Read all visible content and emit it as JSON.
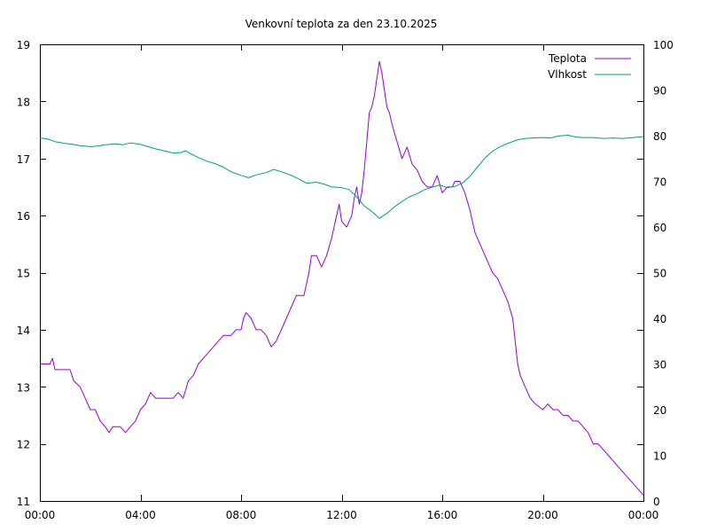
{
  "chart_data": {
    "type": "line",
    "title": "Venkovní teplota za den 23.10.2025",
    "xlabel": "",
    "ylabel": "",
    "y2label": "",
    "x_ticks": [
      "00:00",
      "04:00",
      "08:00",
      "12:00",
      "16:00",
      "20:00",
      "00:00"
    ],
    "x_range_hours": [
      0,
      24
    ],
    "ylim": [
      11,
      19
    ],
    "y_ticks": [
      11,
      12,
      13,
      14,
      15,
      16,
      17,
      18,
      19
    ],
    "y2lim": [
      0,
      100
    ],
    "y2_ticks": [
      0,
      10,
      20,
      30,
      40,
      50,
      60,
      70,
      80,
      90,
      100
    ],
    "grid": false,
    "legend_position": "top-right",
    "series": [
      {
        "name": "Teplota",
        "axis": "left",
        "color": "#9400d3",
        "points": [
          [
            0.0,
            13.4
          ],
          [
            0.4,
            13.4
          ],
          [
            0.5,
            13.5
          ],
          [
            0.6,
            13.3
          ],
          [
            1.0,
            13.3
          ],
          [
            1.2,
            13.3
          ],
          [
            1.35,
            13.1
          ],
          [
            1.6,
            13.0
          ],
          [
            1.8,
            12.8
          ],
          [
            2.0,
            12.6
          ],
          [
            2.2,
            12.6
          ],
          [
            2.4,
            12.4
          ],
          [
            2.6,
            12.3
          ],
          [
            2.75,
            12.2
          ],
          [
            2.9,
            12.3
          ],
          [
            3.2,
            12.3
          ],
          [
            3.4,
            12.2
          ],
          [
            3.6,
            12.3
          ],
          [
            3.8,
            12.4
          ],
          [
            4.0,
            12.6
          ],
          [
            4.2,
            12.7
          ],
          [
            4.4,
            12.9
          ],
          [
            4.6,
            12.8
          ],
          [
            5.0,
            12.8
          ],
          [
            5.3,
            12.8
          ],
          [
            5.5,
            12.9
          ],
          [
            5.7,
            12.8
          ],
          [
            5.9,
            13.1
          ],
          [
            6.1,
            13.2
          ],
          [
            6.3,
            13.4
          ],
          [
            6.5,
            13.5
          ],
          [
            6.7,
            13.6
          ],
          [
            6.9,
            13.7
          ],
          [
            7.1,
            13.8
          ],
          [
            7.3,
            13.9
          ],
          [
            7.6,
            13.9
          ],
          [
            7.8,
            14.0
          ],
          [
            8.0,
            14.0
          ],
          [
            8.1,
            14.2
          ],
          [
            8.2,
            14.3
          ],
          [
            8.4,
            14.2
          ],
          [
            8.6,
            14.0
          ],
          [
            8.8,
            14.0
          ],
          [
            9.0,
            13.9
          ],
          [
            9.2,
            13.7
          ],
          [
            9.4,
            13.8
          ],
          [
            9.6,
            14.0
          ],
          [
            9.8,
            14.2
          ],
          [
            10.0,
            14.4
          ],
          [
            10.2,
            14.6
          ],
          [
            10.5,
            14.6
          ],
          [
            10.7,
            15.0
          ],
          [
            10.8,
            15.3
          ],
          [
            11.0,
            15.3
          ],
          [
            11.2,
            15.1
          ],
          [
            11.4,
            15.3
          ],
          [
            11.6,
            15.6
          ],
          [
            11.8,
            16.0
          ],
          [
            11.9,
            16.2
          ],
          [
            12.0,
            15.9
          ],
          [
            12.2,
            15.8
          ],
          [
            12.4,
            16.0
          ],
          [
            12.5,
            16.3
          ],
          [
            12.6,
            16.5
          ],
          [
            12.7,
            16.2
          ],
          [
            12.8,
            16.4
          ],
          [
            12.9,
            16.8
          ],
          [
            13.0,
            17.3
          ],
          [
            13.1,
            17.8
          ],
          [
            13.2,
            17.9
          ],
          [
            13.3,
            18.1
          ],
          [
            13.4,
            18.4
          ],
          [
            13.5,
            18.7
          ],
          [
            13.6,
            18.5
          ],
          [
            13.7,
            18.2
          ],
          [
            13.8,
            17.9
          ],
          [
            13.9,
            17.8
          ],
          [
            14.0,
            17.6
          ],
          [
            14.2,
            17.3
          ],
          [
            14.4,
            17.0
          ],
          [
            14.6,
            17.2
          ],
          [
            14.8,
            16.9
          ],
          [
            15.0,
            16.8
          ],
          [
            15.2,
            16.6
          ],
          [
            15.4,
            16.5
          ],
          [
            15.6,
            16.5
          ],
          [
            15.8,
            16.7
          ],
          [
            16.0,
            16.4
          ],
          [
            16.2,
            16.5
          ],
          [
            16.4,
            16.5
          ],
          [
            16.5,
            16.6
          ],
          [
            16.7,
            16.6
          ],
          [
            16.9,
            16.4
          ],
          [
            17.1,
            16.1
          ],
          [
            17.3,
            15.7
          ],
          [
            17.5,
            15.5
          ],
          [
            17.7,
            15.3
          ],
          [
            17.9,
            15.1
          ],
          [
            18.0,
            15.0
          ],
          [
            18.2,
            14.9
          ],
          [
            18.4,
            14.7
          ],
          [
            18.6,
            14.5
          ],
          [
            18.8,
            14.2
          ],
          [
            18.9,
            13.8
          ],
          [
            19.0,
            13.4
          ],
          [
            19.1,
            13.2
          ],
          [
            19.3,
            13.0
          ],
          [
            19.5,
            12.8
          ],
          [
            19.7,
            12.7
          ],
          [
            20.0,
            12.6
          ],
          [
            20.2,
            12.7
          ],
          [
            20.4,
            12.6
          ],
          [
            20.6,
            12.6
          ],
          [
            20.8,
            12.5
          ],
          [
            21.0,
            12.5
          ],
          [
            21.2,
            12.4
          ],
          [
            21.4,
            12.4
          ],
          [
            21.6,
            12.3
          ],
          [
            21.8,
            12.2
          ],
          [
            22.0,
            12.0
          ],
          [
            22.2,
            12.0
          ],
          [
            22.4,
            11.9
          ],
          [
            22.6,
            11.8
          ],
          [
            22.8,
            11.7
          ],
          [
            23.0,
            11.6
          ],
          [
            23.2,
            11.5
          ],
          [
            23.4,
            11.4
          ],
          [
            23.6,
            11.3
          ],
          [
            23.8,
            11.2
          ],
          [
            24.0,
            11.1
          ]
        ]
      },
      {
        "name": "Vlhkost",
        "axis": "right",
        "color": "#009e73",
        "points": [
          [
            0.0,
            79.5
          ],
          [
            0.3,
            79.3
          ],
          [
            0.6,
            78.7
          ],
          [
            1.0,
            78.3
          ],
          [
            1.3,
            78.1
          ],
          [
            1.6,
            77.8
          ],
          [
            2.0,
            77.6
          ],
          [
            2.3,
            77.7
          ],
          [
            2.6,
            78.0
          ],
          [
            3.0,
            78.2
          ],
          [
            3.3,
            78.0
          ],
          [
            3.6,
            78.4
          ],
          [
            4.0,
            78.1
          ],
          [
            4.3,
            77.6
          ],
          [
            4.6,
            77.1
          ],
          [
            5.0,
            76.6
          ],
          [
            5.3,
            76.2
          ],
          [
            5.6,
            76.3
          ],
          [
            5.8,
            76.7
          ],
          [
            6.0,
            76.0
          ],
          [
            6.3,
            75.2
          ],
          [
            6.6,
            74.5
          ],
          [
            7.0,
            73.8
          ],
          [
            7.3,
            73.1
          ],
          [
            7.6,
            72.1
          ],
          [
            8.0,
            71.3
          ],
          [
            8.3,
            70.8
          ],
          [
            8.6,
            71.4
          ],
          [
            9.0,
            71.9
          ],
          [
            9.3,
            72.6
          ],
          [
            9.6,
            72.1
          ],
          [
            10.0,
            71.3
          ],
          [
            10.3,
            70.5
          ],
          [
            10.6,
            69.6
          ],
          [
            11.0,
            69.8
          ],
          [
            11.3,
            69.4
          ],
          [
            11.6,
            68.8
          ],
          [
            12.0,
            68.6
          ],
          [
            12.3,
            68.2
          ],
          [
            12.6,
            66.6
          ],
          [
            12.9,
            64.6
          ],
          [
            13.2,
            63.4
          ],
          [
            13.5,
            61.9
          ],
          [
            13.8,
            63.0
          ],
          [
            14.1,
            64.4
          ],
          [
            14.4,
            65.6
          ],
          [
            14.7,
            66.6
          ],
          [
            15.0,
            67.3
          ],
          [
            15.3,
            68.2
          ],
          [
            15.6,
            68.7
          ],
          [
            15.9,
            69.2
          ],
          [
            16.2,
            68.6
          ],
          [
            16.5,
            68.9
          ],
          [
            16.8,
            69.6
          ],
          [
            17.1,
            71.1
          ],
          [
            17.4,
            73.1
          ],
          [
            17.7,
            75.1
          ],
          [
            18.0,
            76.6
          ],
          [
            18.3,
            77.6
          ],
          [
            18.6,
            78.3
          ],
          [
            19.0,
            79.1
          ],
          [
            19.3,
            79.4
          ],
          [
            19.6,
            79.5
          ],
          [
            20.0,
            79.6
          ],
          [
            20.3,
            79.5
          ],
          [
            20.6,
            79.9
          ],
          [
            21.0,
            80.1
          ],
          [
            21.3,
            79.7
          ],
          [
            21.6,
            79.6
          ],
          [
            22.0,
            79.6
          ],
          [
            22.4,
            79.4
          ],
          [
            22.8,
            79.5
          ],
          [
            23.2,
            79.4
          ],
          [
            23.6,
            79.6
          ],
          [
            24.0,
            79.8
          ]
        ]
      }
    ]
  }
}
